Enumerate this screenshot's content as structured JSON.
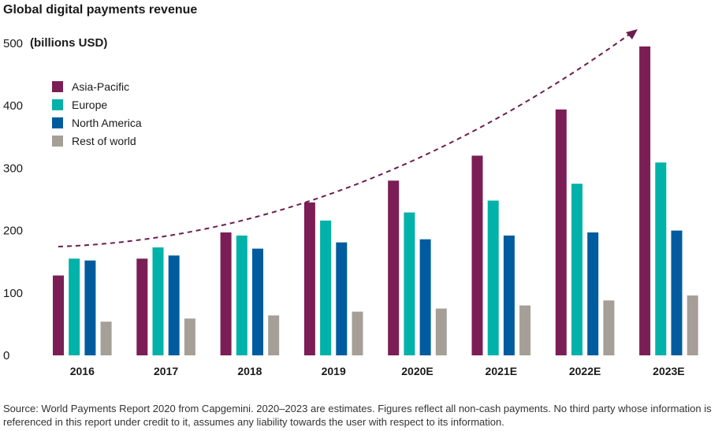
{
  "title": "Global digital payments revenue",
  "unit_label": "(billions USD)",
  "source": "Source: World Payments Report 2020 from Capgemini. 2020–2023 are estimates. Figures reflect all non-cash payments. No third party whose information is referenced in this report under credit to it, assumes any liability towards the user with respect to its information.",
  "chart_data": {
    "type": "bar",
    "categories": [
      "2016",
      "2017",
      "2018",
      "2019",
      "2020E",
      "2021E",
      "2022E",
      "2023E"
    ],
    "series": [
      {
        "name": "Asia-Pacific",
        "color": "#7b1e55",
        "values": [
          128,
          155,
          197,
          245,
          280,
          320,
          394,
          495
        ]
      },
      {
        "name": "Europe",
        "color": "#00b2a9",
        "values": [
          155,
          173,
          192,
          216,
          229,
          248,
          275,
          309
        ]
      },
      {
        "name": "North America",
        "color": "#005c9e",
        "values": [
          152,
          160,
          171,
          181,
          186,
          192,
          197,
          200
        ]
      },
      {
        "name": "Rest of world",
        "color": "#a59f97",
        "values": [
          54,
          59,
          64,
          70,
          75,
          80,
          88,
          96
        ]
      }
    ],
    "yticks": [
      0,
      100,
      200,
      300,
      400,
      500
    ],
    "ylim": [
      0,
      500
    ],
    "legend_position": "top-left",
    "trend_arrow": {
      "color": "#6b1f4e",
      "style": "dashed",
      "direction": "up-right"
    }
  }
}
